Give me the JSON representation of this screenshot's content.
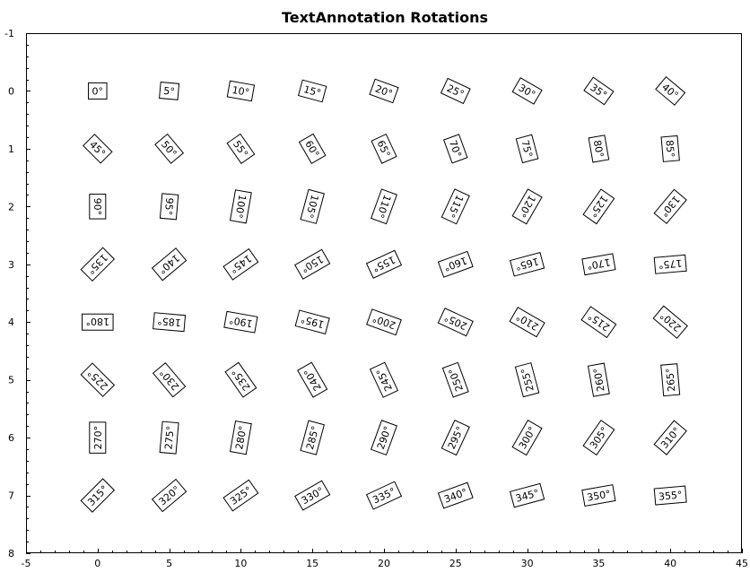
{
  "chart_data": {
    "type": "scatter",
    "title": "TextAnnotation Rotations",
    "xlabel": "",
    "ylabel": "",
    "xlim": [
      -5,
      45
    ],
    "ylim": [
      -1,
      8
    ],
    "y_reversed": true,
    "x_major_ticks": [
      "-5",
      "0",
      "5",
      "10",
      "15",
      "20",
      "25",
      "30",
      "35",
      "40",
      "45"
    ],
    "y_major_ticks": [
      "-1",
      "0",
      "1",
      "2",
      "3",
      "4",
      "5",
      "6",
      "7",
      "8"
    ],
    "grid": false,
    "annotations": [
      {
        "x": 0,
        "y": 0,
        "rotation": 0,
        "text": "0°"
      },
      {
        "x": 5,
        "y": 0,
        "rotation": 5,
        "text": "5°"
      },
      {
        "x": 10,
        "y": 0,
        "rotation": 10,
        "text": "10°"
      },
      {
        "x": 15,
        "y": 0,
        "rotation": 15,
        "text": "15°"
      },
      {
        "x": 20,
        "y": 0,
        "rotation": 20,
        "text": "20°"
      },
      {
        "x": 25,
        "y": 0,
        "rotation": 25,
        "text": "25°"
      },
      {
        "x": 30,
        "y": 0,
        "rotation": 30,
        "text": "30°"
      },
      {
        "x": 35,
        "y": 0,
        "rotation": 35,
        "text": "35°"
      },
      {
        "x": 40,
        "y": 0,
        "rotation": 40,
        "text": "40°"
      },
      {
        "x": 0,
        "y": 1,
        "rotation": 45,
        "text": "45°"
      },
      {
        "x": 5,
        "y": 1,
        "rotation": 50,
        "text": "50°"
      },
      {
        "x": 10,
        "y": 1,
        "rotation": 55,
        "text": "55°"
      },
      {
        "x": 15,
        "y": 1,
        "rotation": 60,
        "text": "60°"
      },
      {
        "x": 20,
        "y": 1,
        "rotation": 65,
        "text": "65°"
      },
      {
        "x": 25,
        "y": 1,
        "rotation": 70,
        "text": "70°"
      },
      {
        "x": 30,
        "y": 1,
        "rotation": 75,
        "text": "75°"
      },
      {
        "x": 35,
        "y": 1,
        "rotation": 80,
        "text": "80°"
      },
      {
        "x": 40,
        "y": 1,
        "rotation": 85,
        "text": "85°"
      },
      {
        "x": 0,
        "y": 2,
        "rotation": 90,
        "text": "90°"
      },
      {
        "x": 5,
        "y": 2,
        "rotation": 95,
        "text": "95°"
      },
      {
        "x": 10,
        "y": 2,
        "rotation": 100,
        "text": "100°"
      },
      {
        "x": 15,
        "y": 2,
        "rotation": 105,
        "text": "105°"
      },
      {
        "x": 20,
        "y": 2,
        "rotation": 110,
        "text": "110°"
      },
      {
        "x": 25,
        "y": 2,
        "rotation": 115,
        "text": "115°"
      },
      {
        "x": 30,
        "y": 2,
        "rotation": 120,
        "text": "120°"
      },
      {
        "x": 35,
        "y": 2,
        "rotation": 125,
        "text": "125°"
      },
      {
        "x": 40,
        "y": 2,
        "rotation": 130,
        "text": "130°"
      },
      {
        "x": 0,
        "y": 3,
        "rotation": 135,
        "text": "135°"
      },
      {
        "x": 5,
        "y": 3,
        "rotation": 140,
        "text": "140°"
      },
      {
        "x": 10,
        "y": 3,
        "rotation": 145,
        "text": "145°"
      },
      {
        "x": 15,
        "y": 3,
        "rotation": 150,
        "text": "150°"
      },
      {
        "x": 20,
        "y": 3,
        "rotation": 155,
        "text": "155°"
      },
      {
        "x": 25,
        "y": 3,
        "rotation": 160,
        "text": "160°"
      },
      {
        "x": 30,
        "y": 3,
        "rotation": 165,
        "text": "165°"
      },
      {
        "x": 35,
        "y": 3,
        "rotation": 170,
        "text": "170°"
      },
      {
        "x": 40,
        "y": 3,
        "rotation": 175,
        "text": "175°"
      },
      {
        "x": 0,
        "y": 4,
        "rotation": 180,
        "text": "180°"
      },
      {
        "x": 5,
        "y": 4,
        "rotation": 185,
        "text": "185°"
      },
      {
        "x": 10,
        "y": 4,
        "rotation": 190,
        "text": "190°"
      },
      {
        "x": 15,
        "y": 4,
        "rotation": 195,
        "text": "195°"
      },
      {
        "x": 20,
        "y": 4,
        "rotation": 200,
        "text": "200°"
      },
      {
        "x": 25,
        "y": 4,
        "rotation": 205,
        "text": "205°"
      },
      {
        "x": 30,
        "y": 4,
        "rotation": 210,
        "text": "210°"
      },
      {
        "x": 35,
        "y": 4,
        "rotation": 215,
        "text": "215°"
      },
      {
        "x": 40,
        "y": 4,
        "rotation": 220,
        "text": "220°"
      },
      {
        "x": 0,
        "y": 5,
        "rotation": 225,
        "text": "225°"
      },
      {
        "x": 5,
        "y": 5,
        "rotation": 230,
        "text": "230°"
      },
      {
        "x": 10,
        "y": 5,
        "rotation": 235,
        "text": "235°"
      },
      {
        "x": 15,
        "y": 5,
        "rotation": 240,
        "text": "240°"
      },
      {
        "x": 20,
        "y": 5,
        "rotation": 245,
        "text": "245°"
      },
      {
        "x": 25,
        "y": 5,
        "rotation": 250,
        "text": "250°"
      },
      {
        "x": 30,
        "y": 5,
        "rotation": 255,
        "text": "255°"
      },
      {
        "x": 35,
        "y": 5,
        "rotation": 260,
        "text": "260°"
      },
      {
        "x": 40,
        "y": 5,
        "rotation": 265,
        "text": "265°"
      },
      {
        "x": 0,
        "y": 6,
        "rotation": 270,
        "text": "270°"
      },
      {
        "x": 5,
        "y": 6,
        "rotation": 275,
        "text": "275°"
      },
      {
        "x": 10,
        "y": 6,
        "rotation": 280,
        "text": "280°"
      },
      {
        "x": 15,
        "y": 6,
        "rotation": 285,
        "text": "285°"
      },
      {
        "x": 20,
        "y": 6,
        "rotation": 290,
        "text": "290°"
      },
      {
        "x": 25,
        "y": 6,
        "rotation": 295,
        "text": "295°"
      },
      {
        "x": 30,
        "y": 6,
        "rotation": 300,
        "text": "300°"
      },
      {
        "x": 35,
        "y": 6,
        "rotation": 305,
        "text": "305°"
      },
      {
        "x": 40,
        "y": 6,
        "rotation": 310,
        "text": "310°"
      },
      {
        "x": 0,
        "y": 7,
        "rotation": 315,
        "text": "315°"
      },
      {
        "x": 5,
        "y": 7,
        "rotation": 320,
        "text": "320°"
      },
      {
        "x": 10,
        "y": 7,
        "rotation": 325,
        "text": "325°"
      },
      {
        "x": 15,
        "y": 7,
        "rotation": 330,
        "text": "330°"
      },
      {
        "x": 20,
        "y": 7,
        "rotation": 335,
        "text": "335°"
      },
      {
        "x": 25,
        "y": 7,
        "rotation": 340,
        "text": "340°"
      },
      {
        "x": 30,
        "y": 7,
        "rotation": 345,
        "text": "345°"
      },
      {
        "x": 35,
        "y": 7,
        "rotation": 350,
        "text": "350°"
      },
      {
        "x": 40,
        "y": 7,
        "rotation": 355,
        "text": "355°"
      }
    ]
  }
}
